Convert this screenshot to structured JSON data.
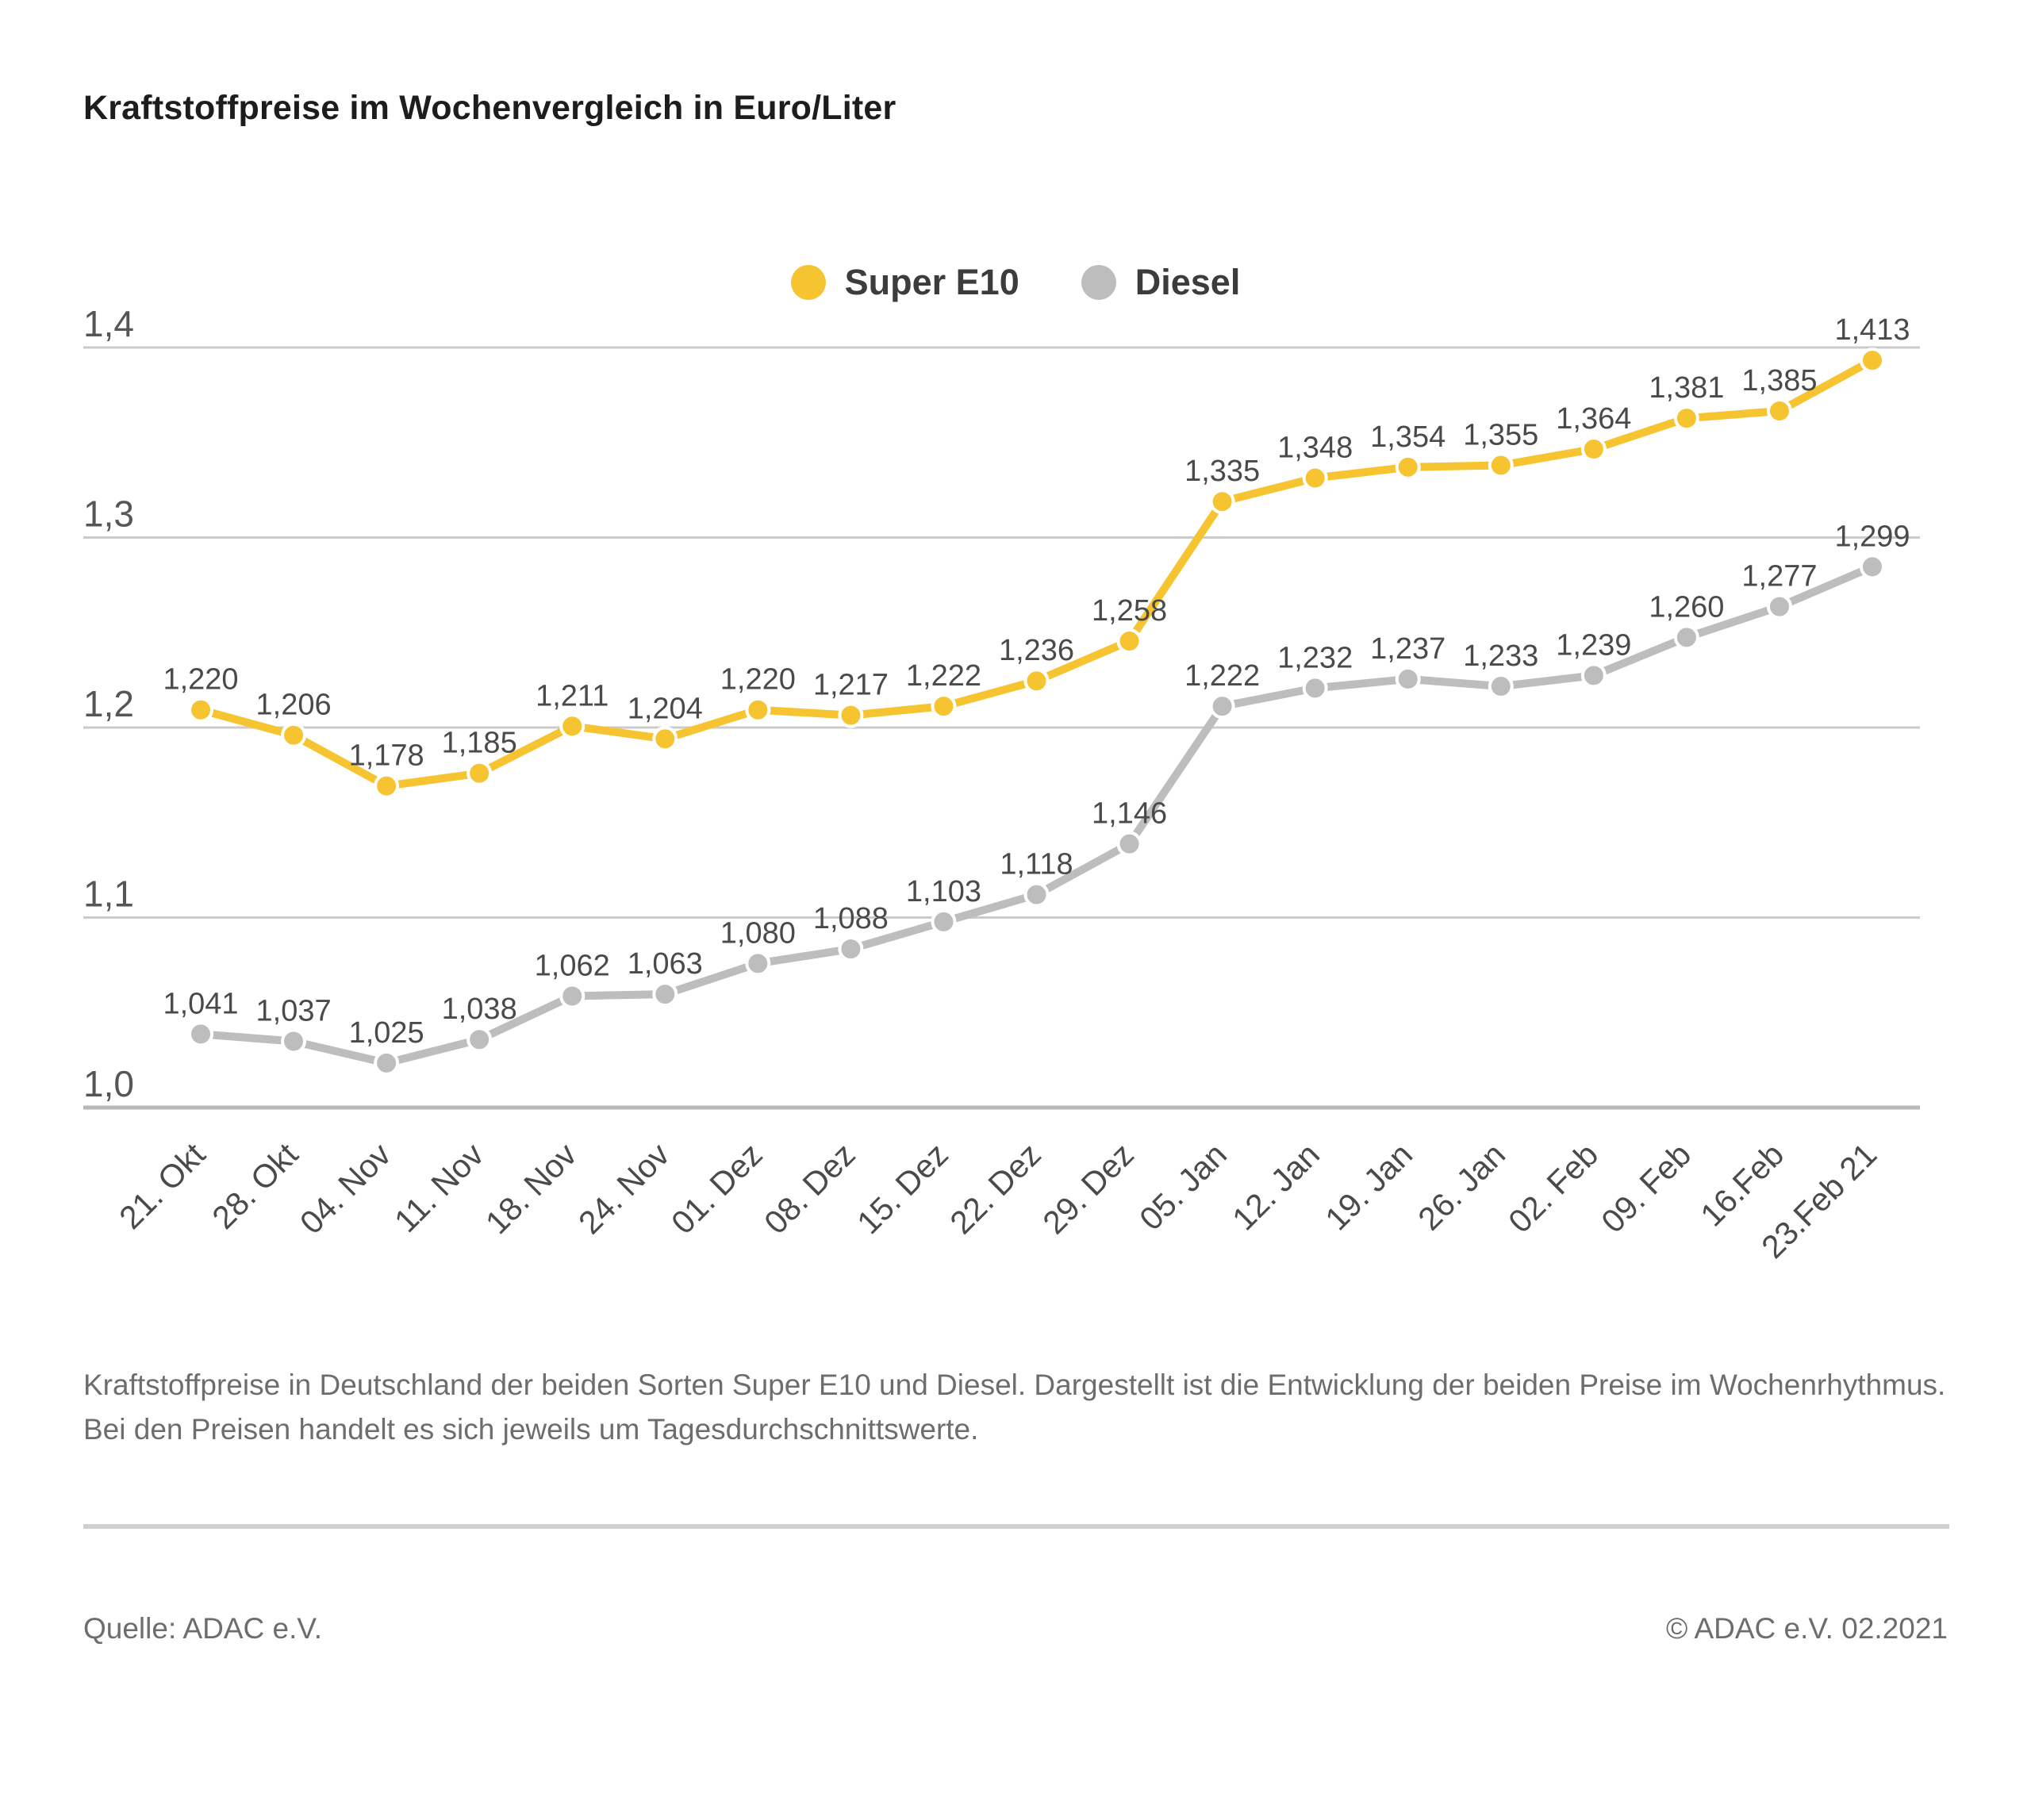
{
  "title": "Kraftstoffpreise im Wochenvergleich in Euro/Liter",
  "legend": {
    "items": [
      {
        "label": "Super E10",
        "color": "#F6C430"
      },
      {
        "label": "Diesel",
        "color": "#BDBDBD"
      }
    ]
  },
  "chart_data": {
    "type": "line",
    "title": "Kraftstoffpreise im Wochenvergleich in Euro/Liter",
    "xlabel": "",
    "ylabel": "Euro/Liter",
    "categories": [
      "21. Okt",
      "28. Okt",
      "04. Nov",
      "11. Nov",
      "18. Nov",
      "24. Nov",
      "01. Dez",
      "08. Dez",
      "15. Dez",
      "22. Dez",
      "29. Dez",
      "05. Jan",
      "12. Jan",
      "19. Jan",
      "26. Jan",
      "02. Feb",
      "09. Feb",
      "16.Feb",
      "23.Feb 21"
    ],
    "series": [
      {
        "name": "Super E10",
        "color": "#F6C430",
        "values": [
          1.22,
          1.206,
          1.178,
          1.185,
          1.211,
          1.204,
          1.22,
          1.217,
          1.222,
          1.236,
          1.258,
          1.335,
          1.348,
          1.354,
          1.355,
          1.364,
          1.381,
          1.385,
          1.413
        ],
        "point_labels": [
          "1,220",
          "1,206",
          "1,178",
          "1,185",
          "1,211",
          "1,204",
          "1,220",
          "1,217",
          "1,222",
          "1,236",
          "1,258",
          "1,335",
          "1,348",
          "1,354",
          "1,355",
          "1,364",
          "1,381",
          "1,385",
          "1,413"
        ]
      },
      {
        "name": "Diesel",
        "color": "#BDBDBD",
        "values": [
          1.041,
          1.037,
          1.025,
          1.038,
          1.062,
          1.063,
          1.08,
          1.088,
          1.103,
          1.118,
          1.146,
          1.222,
          1.232,
          1.237,
          1.233,
          1.239,
          1.26,
          1.277,
          1.299
        ],
        "point_labels": [
          "1,041",
          "1,037",
          "1,025",
          "1,038",
          "1,062",
          "1,063",
          "1,080",
          "1,088",
          "1,103",
          "1,118",
          "1,146",
          "1,222",
          "1,232",
          "1,237",
          "1,233",
          "1,239",
          "1,260",
          "1,277",
          "1,299"
        ]
      }
    ],
    "y_ticks": {
      "labels": [
        "1,4",
        "1,3",
        "1,2",
        "1,1",
        "1,0"
      ],
      "values": [
        1.4,
        1.3,
        1.2,
        1.1,
        1.0
      ]
    },
    "ylim": [
      1.0,
      1.4
    ],
    "grid": true,
    "legend_position": "top-center",
    "decimal_separator": ","
  },
  "caption": "Kraftstoffpreise in Deutschland der beiden Sorten Super E10 und Diesel. Dargestellt ist die Entwicklung der beiden Preise im Wochenrhythmus. Bei den Preisen handelt es sich jeweils um Tagesdurchschnittswerte.",
  "footer": {
    "source": "Quelle: ADAC e.V.",
    "copyright": "© ADAC e.V. 02.2021"
  }
}
